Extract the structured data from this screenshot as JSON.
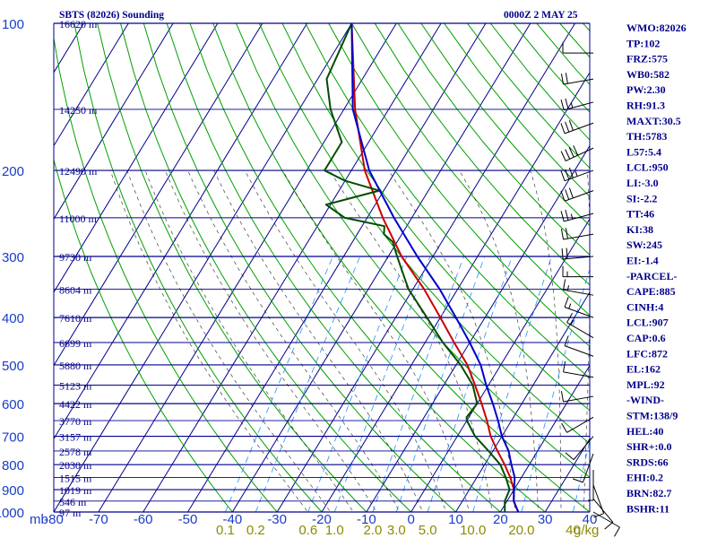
{
  "header": {
    "title": "SBTS (82026) Sounding",
    "time": "0000Z  2 MAY 25"
  },
  "colors": {
    "isobar": "#00008b",
    "isotherm": "#00008b",
    "dry_adiabat": "#00a000",
    "moist_adiabat": "#000000",
    "mixing_ratio": "#1e90ff",
    "temperature": "#cc0000",
    "dewpoint": "#004d00",
    "parcel": "#0000cc",
    "pressure_label": "#1a3cc8",
    "temp_label": "#1a3cc8",
    "height_label": "#00008b",
    "mixing_label": "#8b8b00",
    "index_text": "#00008b",
    "wind_barb": "#000000"
  },
  "chart_data": {
    "type": "line",
    "x_label": "",
    "y_label": "mb",
    "xlim": [
      -80,
      40
    ],
    "ylim": [
      1000,
      100
    ],
    "x_ticks": [
      -80,
      -70,
      -60,
      -50,
      -40,
      -30,
      -20,
      -10,
      0,
      10,
      20,
      30,
      40
    ],
    "x_tick_labels": [
      "-80",
      "-70",
      "-60",
      "-50",
      "-40",
      "-30",
      "-20",
      "-10",
      "0",
      "10",
      "20",
      "30",
      "40"
    ],
    "y_ticks": [
      100,
      200,
      300,
      400,
      500,
      600,
      700,
      800,
      900,
      1000
    ],
    "y_tick_labels": [
      "100",
      "200",
      "300",
      "400",
      "500",
      "600",
      "700",
      "800",
      "900",
      "1000"
    ],
    "axis_unit_label": "mb",
    "height_labels": [
      {
        "p": 100,
        "label": "16620 m"
      },
      {
        "p": 150,
        "label": "14250 m"
      },
      {
        "p": 200,
        "label": "12490 m"
      },
      {
        "p": 250,
        "label": "11000 m"
      },
      {
        "p": 300,
        "label": "9730 m"
      },
      {
        "p": 350,
        "label": "8604 m"
      },
      {
        "p": 400,
        "label": "7610 m"
      },
      {
        "p": 450,
        "label": "6699 m"
      },
      {
        "p": 500,
        "label": "5880 m"
      },
      {
        "p": 550,
        "label": "5123 m"
      },
      {
        "p": 600,
        "label": "4422 m"
      },
      {
        "p": 650,
        "label": "3770 m"
      },
      {
        "p": 700,
        "label": "3157 m"
      },
      {
        "p": 750,
        "label": "2578 m"
      },
      {
        "p": 800,
        "label": "2030 m"
      },
      {
        "p": 850,
        "label": "1515 m"
      },
      {
        "p": 900,
        "label": "1019 m"
      },
      {
        "p": 950,
        "label": "546 m"
      },
      {
        "p": 1000,
        "label": "97 m"
      }
    ],
    "mixing_ratio_labels": [
      {
        "w": 0.1,
        "label": "0.1"
      },
      {
        "w": 0.2,
        "label": "0.2"
      },
      {
        "w": 0.6,
        "label": "0.6"
      },
      {
        "w": 1.0,
        "label": "1.0"
      },
      {
        "w": 2.0,
        "label": "2.0"
      },
      {
        "w": 3.0,
        "label": "3.0"
      },
      {
        "w": 5.0,
        "label": "5.0"
      },
      {
        "w": 10.0,
        "label": "10.0"
      },
      {
        "w": 20.0,
        "label": "20.0"
      },
      {
        "w": 40.0,
        "label": "40"
      }
    ],
    "mixing_unit_label": "g/kg",
    "series": [
      {
        "key": "temperature",
        "points": [
          [
            1000,
            24.0
          ],
          [
            950,
            21.5
          ],
          [
            900,
            20.0
          ],
          [
            850,
            17.5
          ],
          [
            800,
            14.5
          ],
          [
            750,
            11.0
          ],
          [
            700,
            7.5
          ],
          [
            650,
            4.5
          ],
          [
            600,
            1.0
          ],
          [
            550,
            -3.0
          ],
          [
            500,
            -7.5
          ],
          [
            450,
            -13.5
          ],
          [
            400,
            -20.0
          ],
          [
            350,
            -27.5
          ],
          [
            300,
            -37.0
          ],
          [
            250,
            -46.5
          ],
          [
            200,
            -57.0
          ],
          [
            150,
            -67.5
          ],
          [
            100,
            -80.0
          ]
        ]
      },
      {
        "key": "dewpoint",
        "points": [
          [
            1000,
            21.0
          ],
          [
            950,
            19.5
          ],
          [
            900,
            19.0
          ],
          [
            850,
            16.5
          ],
          [
            800,
            13.5
          ],
          [
            750,
            9.0
          ],
          [
            700,
            4.0
          ],
          [
            650,
            0.0
          ],
          [
            640,
            -0.5
          ],
          [
            600,
            0.0
          ],
          [
            550,
            -3.5
          ],
          [
            500,
            -9.0
          ],
          [
            450,
            -16.0
          ],
          [
            400,
            -23.0
          ],
          [
            350,
            -31.0
          ],
          [
            335,
            -33.0
          ],
          [
            300,
            -38.0
          ],
          [
            280,
            -41.0
          ],
          [
            270,
            -44.0
          ],
          [
            260,
            -45.0
          ],
          [
            250,
            -55.0
          ],
          [
            235,
            -61.0
          ],
          [
            220,
            -51.0
          ],
          [
            210,
            -60.0
          ],
          [
            200,
            -66.0
          ],
          [
            175,
            -66.0
          ],
          [
            150,
            -73.0
          ],
          [
            130,
            -78.0
          ],
          [
            100,
            -80.0
          ]
        ]
      },
      {
        "key": "parcel",
        "points": [
          [
            1000,
            24.0
          ],
          [
            950,
            21.5
          ],
          [
            900,
            20.0
          ],
          [
            850,
            18.5
          ],
          [
            800,
            16.0
          ],
          [
            750,
            13.5
          ],
          [
            700,
            10.0
          ],
          [
            650,
            7.0
          ],
          [
            600,
            3.5
          ],
          [
            550,
            -0.5
          ],
          [
            500,
            -4.5
          ],
          [
            450,
            -10.0
          ],
          [
            400,
            -16.5
          ],
          [
            350,
            -24.0
          ],
          [
            300,
            -33.5
          ],
          [
            250,
            -44.0
          ],
          [
            200,
            -56.0
          ],
          [
            150,
            -68.0
          ],
          [
            100,
            -80.0
          ]
        ]
      }
    ]
  },
  "wind_barbs": [
    {
      "p": 115,
      "dir": 270,
      "spd": 10
    },
    {
      "p": 130,
      "dir": 260,
      "spd": 20
    },
    {
      "p": 145,
      "dir": 255,
      "spd": 25
    },
    {
      "p": 160,
      "dir": 250,
      "spd": 30
    },
    {
      "p": 180,
      "dir": 245,
      "spd": 40
    },
    {
      "p": 200,
      "dir": 250,
      "spd": 35
    },
    {
      "p": 220,
      "dir": 250,
      "spd": 30
    },
    {
      "p": 245,
      "dir": 255,
      "spd": 25
    },
    {
      "p": 270,
      "dir": 260,
      "spd": 20
    },
    {
      "p": 300,
      "dir": 265,
      "spd": 20
    },
    {
      "p": 330,
      "dir": 270,
      "spd": 15
    },
    {
      "p": 360,
      "dir": 280,
      "spd": 15
    },
    {
      "p": 400,
      "dir": 290,
      "spd": 15
    },
    {
      "p": 440,
      "dir": 300,
      "spd": 15
    },
    {
      "p": 480,
      "dir": 290,
      "spd": 10
    },
    {
      "p": 530,
      "dir": 280,
      "spd": 10
    },
    {
      "p": 580,
      "dir": 260,
      "spd": 10
    },
    {
      "p": 640,
      "dir": 240,
      "spd": 10
    },
    {
      "p": 700,
      "dir": 220,
      "spd": 10
    },
    {
      "p": 760,
      "dir": 200,
      "spd": 10
    },
    {
      "p": 820,
      "dir": 180,
      "spd": 5
    },
    {
      "p": 880,
      "dir": 160,
      "spd": 10
    },
    {
      "p": 940,
      "dir": 140,
      "spd": 10
    },
    {
      "p": 1000,
      "dir": 120,
      "spd": 10
    }
  ],
  "indices": [
    "WMO:82026",
    "TP:102",
    "FRZ:575",
    "WB0:582",
    "PW:2.30",
    "RH:91.3",
    "MAXT:30.5",
    "TH:5783",
    "L57:5.4",
    "LCL:950",
    "LI:-3.0",
    "SI:-2.2",
    "TT:46",
    "KI:38",
    "SW:245",
    "EI:-1.4",
    "-PARCEL-",
    "CAPE:885",
    "CINH:4",
    "LCL:907",
    "CAP:0.6",
    "LFC:872",
    "EL:162",
    "MPL:92",
    "-WIND-",
    "STM:138/9",
    "HEL:40",
    "SHR+:0.0",
    "SRDS:66",
    "EHI:0.2",
    "BRN:82.7",
    "BSHR:11"
  ]
}
